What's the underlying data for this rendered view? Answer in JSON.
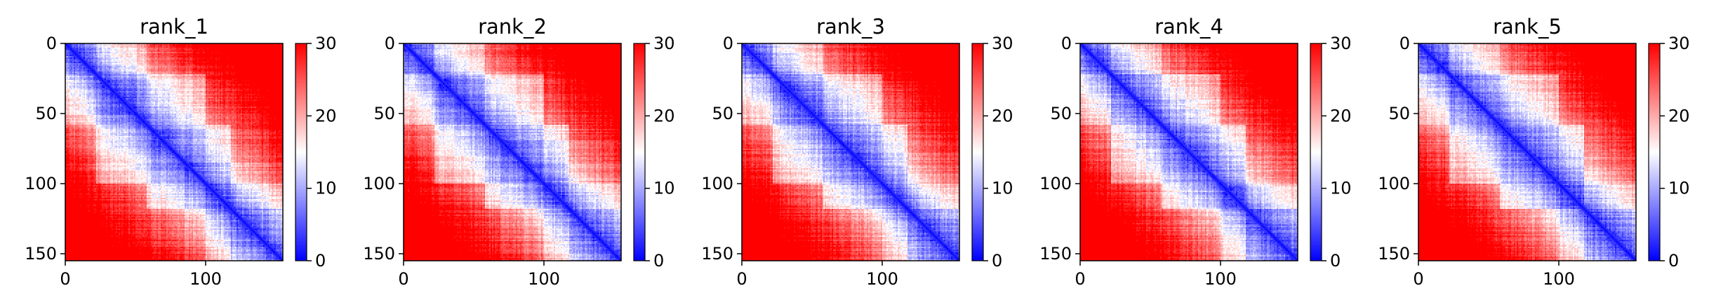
{
  "chart_data": {
    "type": "heatmap",
    "description_colormap": "bwr",
    "colormap_colors": [
      "#0000ff",
      "#ffffff",
      "#ff0000"
    ],
    "color_range": [
      0,
      30
    ],
    "colorbar_ticks": [
      0,
      10,
      20,
      30
    ],
    "matrix_size": 155,
    "x_ticks": [
      0,
      100
    ],
    "y_ticks": [
      0,
      50,
      100,
      150
    ],
    "xlim": [
      0,
      155
    ],
    "ylim": [
      155,
      0
    ],
    "domains": [
      [
        0,
        22
      ],
      [
        22,
        58
      ],
      [
        58,
        100
      ],
      [
        100,
        118
      ],
      [
        118,
        155
      ]
    ],
    "panels": [
      {
        "title": "rank_1"
      },
      {
        "title": "rank_2"
      },
      {
        "title": "rank_3"
      },
      {
        "title": "rank_4"
      },
      {
        "title": "rank_5"
      }
    ]
  }
}
